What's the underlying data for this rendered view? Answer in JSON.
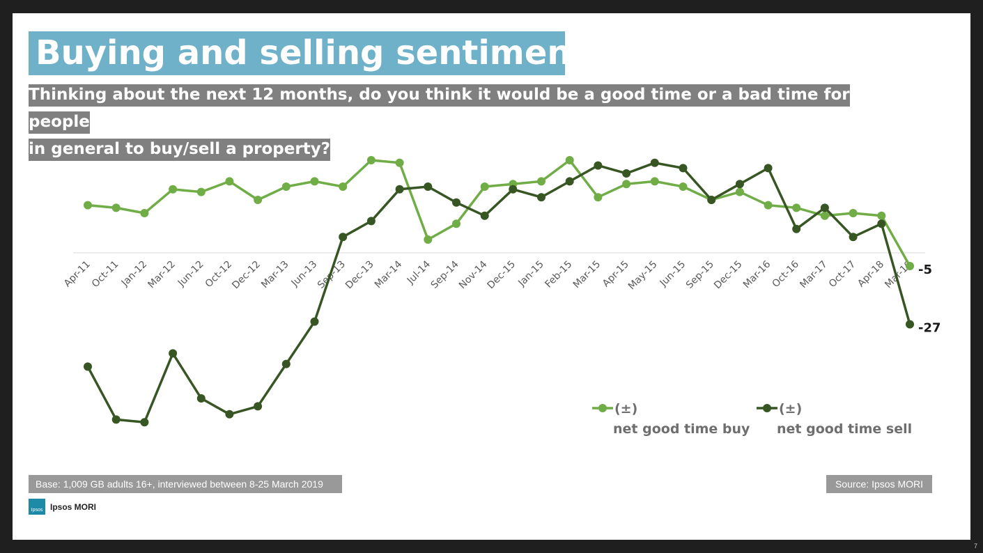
{
  "title": "Buying and selling sentiment",
  "subtitle_line1": "Thinking about the next 12 months, do you think it would be a good time or a bad time for people",
  "subtitle_line2": "in general to buy/sell a property?",
  "base_note": "Base: 1,009 GB adults 16+, interviewed between 8-25 March 2019",
  "source_note": "Source: Ipsos MORI",
  "logo_box_text": "Ipsos",
  "logo_text": "Ipsos MORI",
  "page_number": "7",
  "colors": {
    "buy": "#70ad47",
    "sell": "#375623",
    "title_bg": "#6fb1c9",
    "subtitle_bg": "#808080",
    "note_bg": "#999999"
  },
  "chart_data": {
    "type": "line",
    "categories": [
      "Apr-11",
      "Oct-11",
      "Jan-12",
      "Mar-12",
      "Jun-12",
      "Oct-12",
      "Dec-12",
      "Mar-13",
      "Jun-13",
      "Sep-13",
      "Dec-13",
      "Mar-14",
      "Jul-14",
      "Sep-14",
      "Nov-14",
      "Dec-15",
      "Jan-15",
      "Feb-15",
      "Mar-15",
      "Apr-15",
      "May-15",
      "Jun-15",
      "Sep-15",
      "Dec-15",
      "Mar-16",
      "Oct-16",
      "Mar-17",
      "Oct-17",
      "Apr-18",
      "Mar-19"
    ],
    "series": [
      {
        "name": "(±) net good time buy",
        "legend_symbol": "(±)",
        "legend_text": "net good time buy",
        "end_label": "-5",
        "values": [
          18,
          17,
          15,
          24,
          23,
          27,
          20,
          25,
          27,
          25,
          35,
          34,
          5,
          11,
          25,
          26,
          27,
          35,
          21,
          26,
          27,
          25,
          20,
          23,
          18,
          17,
          14,
          15,
          14,
          -5
        ]
      },
      {
        "name": "(±) net good time sell",
        "legend_symbol": "(±)",
        "legend_text": "net good time sell",
        "end_label": "-27",
        "values": [
          -43,
          -63,
          -64,
          -38,
          -55,
          -61,
          -58,
          -42,
          -26,
          6,
          12,
          24,
          25,
          19,
          14,
          24,
          21,
          27,
          33,
          30,
          34,
          32,
          20,
          26,
          32,
          9,
          17,
          6,
          11,
          -27
        ]
      }
    ],
    "ylim": [
      -70,
      40
    ],
    "grid": false,
    "legend_position": "bottom-right"
  }
}
